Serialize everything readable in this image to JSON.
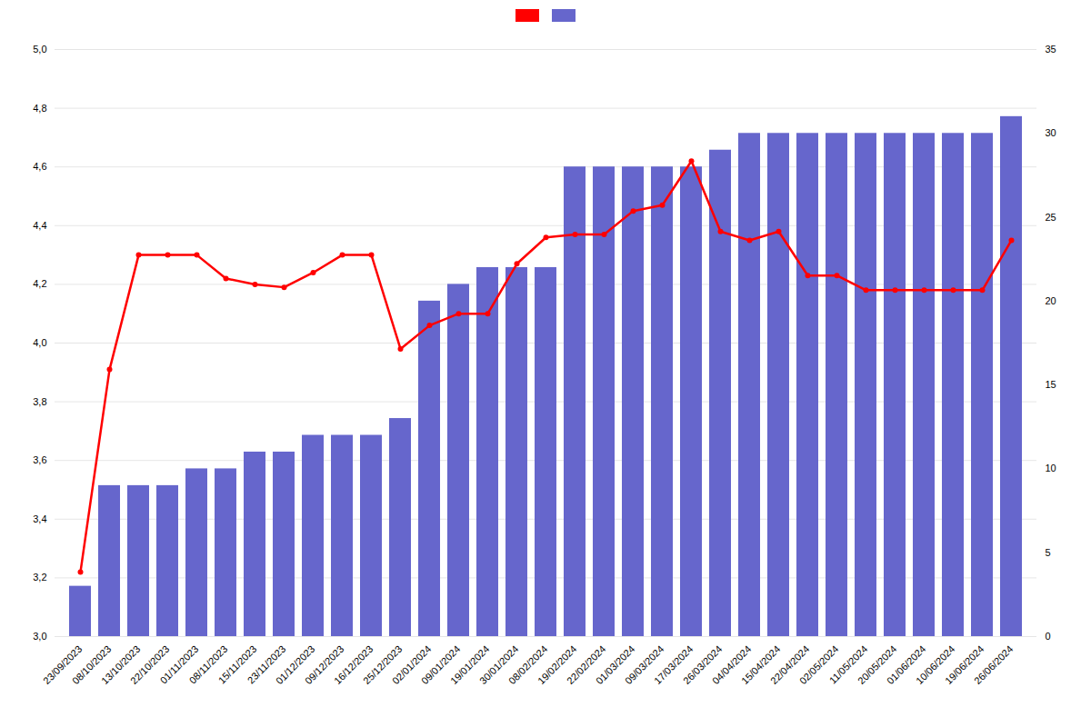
{
  "chart_data": {
    "type": "bar",
    "categories": [
      "23/09/2023",
      "08/10/2023",
      "13/10/2023",
      "22/10/2023",
      "01/11/2023",
      "08/11/2023",
      "15/11/2023",
      "23/11/2023",
      "01/12/2023",
      "09/12/2023",
      "16/12/2023",
      "25/12/2023",
      "02/01/2024",
      "09/01/2024",
      "19/01/2024",
      "30/01/2024",
      "08/02/2024",
      "19/02/2024",
      "22/02/2024",
      "01/03/2024",
      "09/03/2024",
      "17/03/2024",
      "26/03/2024",
      "04/04/2024",
      "15/04/2024",
      "22/04/2024",
      "02/05/2024",
      "11/05/2024",
      "20/05/2024",
      "01/06/2024",
      "10/06/2024",
      "19/06/2024",
      "26/06/2024"
    ],
    "series": [
      {
        "type": "line",
        "axis": "y",
        "color": "#ff0000",
        "marker": "circle",
        "values": [
          3.22,
          3.91,
          4.3,
          4.3,
          4.3,
          4.22,
          4.2,
          4.19,
          4.24,
          4.3,
          4.3,
          3.98,
          4.06,
          4.1,
          4.1,
          4.27,
          4.36,
          4.37,
          4.37,
          4.45,
          4.47,
          4.62,
          4.38,
          4.35,
          4.38,
          4.23,
          4.23,
          4.18,
          4.18,
          4.18,
          4.18,
          4.18,
          4.35
        ]
      },
      {
        "type": "bar",
        "axis": "y2",
        "color": "#6666cc",
        "values": [
          3,
          9,
          9,
          9,
          10,
          10,
          11,
          11,
          12,
          12,
          12,
          13,
          20,
          21,
          22,
          22,
          22,
          28,
          28,
          28,
          28,
          28,
          29,
          30,
          30,
          30,
          30,
          30,
          30,
          30,
          30,
          30,
          31
        ]
      }
    ],
    "ylim": [
      3.0,
      5.0
    ],
    "yticks": [
      {
        "value": 3.0,
        "label": "3,0"
      },
      {
        "value": 3.2,
        "label": "3,2"
      },
      {
        "value": 3.4,
        "label": "3,4"
      },
      {
        "value": 3.6,
        "label": "3,6"
      },
      {
        "value": 3.8,
        "label": "3,8"
      },
      {
        "value": 4.0,
        "label": "4,0"
      },
      {
        "value": 4.2,
        "label": "4,2"
      },
      {
        "value": 4.4,
        "label": "4,4"
      },
      {
        "value": 4.6,
        "label": "4,6"
      },
      {
        "value": 4.8,
        "label": "4,8"
      },
      {
        "value": 5.0,
        "label": "5,0"
      }
    ],
    "y2lim": [
      0,
      35
    ],
    "y2ticks": [
      0,
      5,
      10,
      15,
      20,
      25,
      30,
      35
    ],
    "grid": true,
    "legend": "top"
  }
}
